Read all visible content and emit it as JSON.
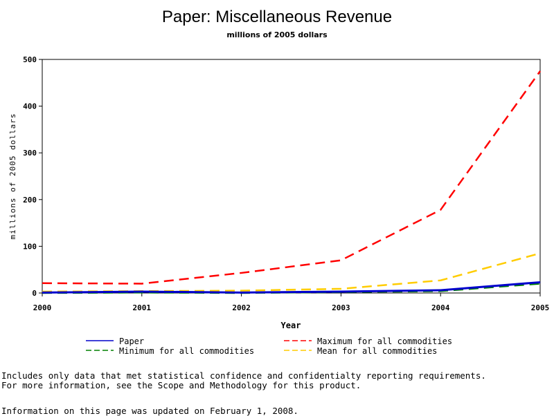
{
  "chart_data": {
    "type": "line",
    "title": "Paper: Miscellaneous Revenue",
    "subtitle": "millions of 2005 dollars",
    "xlabel": "Year",
    "ylabel": "millions of 2005 dollars",
    "x": [
      2000,
      2001,
      2002,
      2003,
      2004,
      2005
    ],
    "xlim": [
      2000,
      2005
    ],
    "ylim": [
      0,
      500
    ],
    "yticks": [
      0,
      100,
      200,
      300,
      400,
      500
    ],
    "grid": false,
    "legend_position": "bottom",
    "series": [
      {
        "name": "Paper",
        "values": [
          1,
          3,
          1,
          3,
          6,
          23
        ],
        "color": "#0000cc",
        "dash": "solid"
      },
      {
        "name": "Minimum for all commodities",
        "values": [
          0,
          1,
          0,
          2,
          4,
          20
        ],
        "color": "#008000",
        "dash": "dashed"
      },
      {
        "name": "Maximum for all commodities",
        "values": [
          21,
          20,
          43,
          70,
          178,
          475
        ],
        "color": "#ff0000",
        "dash": "dashed"
      },
      {
        "name": "Mean for all commodities",
        "values": [
          3,
          4,
          5,
          9,
          27,
          85
        ],
        "color": "#ffcc00",
        "dash": "dashed"
      }
    ]
  },
  "notes": {
    "line1": "Includes only data that met statistical confidence and confidentialty reporting requirements.",
    "line2": "For more information, see the Scope and Methodology for this product.",
    "updated": "Information on this page was updated on February 1, 2008."
  }
}
